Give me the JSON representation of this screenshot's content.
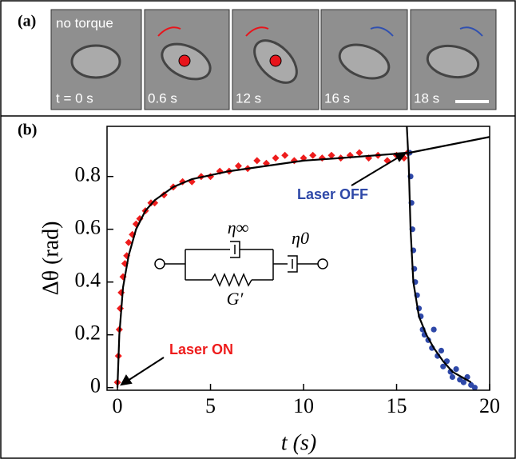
{
  "panel_a": {
    "label": "(a)",
    "captions": [
      "no torque",
      "t = 0 s",
      "0.6 s",
      "12 s",
      "16 s",
      "18 s"
    ]
  },
  "chart_data": {
    "type": "scatter",
    "panel_label": "(b)",
    "xlabel": "t (s)",
    "ylabel": "Δθ (rad)",
    "xlim": [
      -0.56,
      20
    ],
    "ylim": [
      -0.01,
      0.99
    ],
    "xticks": [
      0,
      5,
      10,
      15,
      20
    ],
    "yticks": [
      0,
      0.2,
      0.4,
      0.6,
      0.8
    ],
    "annotations": [
      "Laser ON",
      "Laser OFF",
      "η∞",
      "η0",
      "G′"
    ],
    "series": [
      {
        "color": "#ee1c1c",
        "marker": "diamond",
        "x": [
          0,
          0.05,
          0.1,
          0.15,
          0.2,
          0.3,
          0.4,
          0.5,
          0.6,
          0.8,
          1,
          1.2,
          1.5,
          1.8,
          2,
          2.5,
          3,
          3.5,
          4,
          4.5,
          5,
          5.5,
          6,
          6.5,
          7,
          7.5,
          8,
          8.5,
          9,
          9.5,
          10,
          10.5,
          11,
          11.5,
          12,
          12.5,
          13,
          13.5,
          14,
          14.5,
          15,
          15.4,
          15.6
        ],
        "values": [
          0.02,
          0.12,
          0.22,
          0.3,
          0.36,
          0.42,
          0.47,
          0.5,
          0.55,
          0.58,
          0.62,
          0.64,
          0.67,
          0.7,
          0.7,
          0.73,
          0.76,
          0.78,
          0.78,
          0.8,
          0.8,
          0.82,
          0.82,
          0.84,
          0.83,
          0.86,
          0.85,
          0.87,
          0.88,
          0.86,
          0.87,
          0.88,
          0.87,
          0.88,
          0.87,
          0.88,
          0.89,
          0.87,
          0.88,
          0.86,
          0.88,
          0.87,
          0.89
        ]
      },
      {
        "color": "#2e48a8",
        "marker": "circle",
        "x": [
          15.7,
          15.75,
          15.8,
          15.85,
          15.9,
          15.95,
          16,
          16.1,
          16.2,
          16.3,
          16.4,
          16.5,
          16.7,
          16.9,
          17,
          17.2,
          17.4,
          17.5,
          17.7,
          17.9,
          18,
          18.2,
          18.4,
          18.6,
          18.8,
          19,
          19.2
        ],
        "values": [
          0.89,
          0.8,
          0.7,
          0.6,
          0.52,
          0.45,
          0.4,
          0.35,
          0.3,
          0.27,
          0.22,
          0.2,
          0.18,
          0.15,
          0.22,
          0.12,
          0.14,
          0.08,
          0.1,
          0.06,
          0.04,
          0.07,
          0.03,
          0.02,
          0.04,
          0.01,
          0
        ]
      },
      {
        "color": "#000000",
        "marker": "line",
        "x": [
          0,
          0.1,
          0.3,
          0.6,
          1,
          1.5,
          2,
          3,
          4,
          6,
          8,
          10,
          12,
          15.7,
          20
        ],
        "values": [
          0,
          0.2,
          0.38,
          0.5,
          0.6,
          0.67,
          0.71,
          0.76,
          0.79,
          0.82,
          0.84,
          0.86,
          0.87,
          0.89,
          0.95
        ]
      },
      {
        "color": "#000000",
        "marker": "line",
        "x": [
          15.55,
          15.65,
          15.75,
          15.9,
          16.2,
          16.6,
          17,
          17.5,
          18,
          18.5,
          19
        ],
        "values": [
          0.99,
          0.85,
          0.6,
          0.4,
          0.27,
          0.2,
          0.15,
          0.1,
          0.06,
          0.04,
          0.02
        ]
      }
    ]
  }
}
